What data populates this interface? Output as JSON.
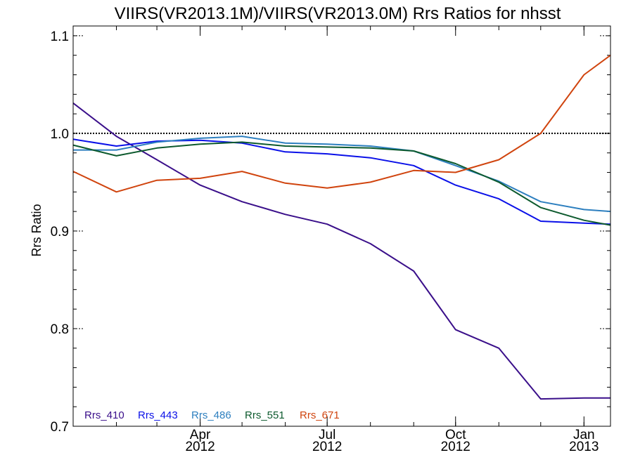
{
  "chart_data": {
    "type": "line",
    "title": "VIIRS(VR2013.1M)/VIIRS(VR2013.0M)  Rrs Ratios for nhsst",
    "xlabel": "",
    "ylabel": "Rrs Ratio",
    "xlim": [
      "2012-01-01",
      "2013-01-20"
    ],
    "ylim": [
      0.7,
      1.11
    ],
    "yticks": [
      {
        "value": 0.7,
        "label": "0.7"
      },
      {
        "value": 0.8,
        "label": "0.8"
      },
      {
        "value": 0.9,
        "label": "0.9"
      },
      {
        "value": 1.0,
        "label": "1.0"
      },
      {
        "value": 1.1,
        "label": "1.1"
      }
    ],
    "xticks": [
      {
        "date": "2012-04-01",
        "month": "Apr",
        "year": "2012"
      },
      {
        "date": "2012-07-01",
        "month": "Jul",
        "year": "2012"
      },
      {
        "date": "2012-10-01",
        "month": "Oct",
        "year": "2012"
      },
      {
        "date": "2013-01-01",
        "month": "Jan",
        "year": "2013"
      }
    ],
    "reference_line": 1.0,
    "x": [
      "2012-01-01",
      "2012-02-01",
      "2012-03-01",
      "2012-04-01",
      "2012-05-01",
      "2012-06-01",
      "2012-07-01",
      "2012-08-01",
      "2012-09-01",
      "2012-10-01",
      "2012-11-01",
      "2012-12-01",
      "2013-01-01",
      "2013-01-20"
    ],
    "series": [
      {
        "name": "Rrs_410",
        "color": "#3a0f8a",
        "values": [
          1.031,
          0.997,
          0.973,
          0.947,
          0.93,
          0.917,
          0.907,
          0.887,
          0.859,
          0.799,
          0.78,
          0.728,
          0.729,
          0.729
        ]
      },
      {
        "name": "Rrs_443",
        "color": "#0a10e8",
        "values": [
          0.994,
          0.987,
          0.992,
          0.993,
          0.99,
          0.981,
          0.979,
          0.975,
          0.967,
          0.947,
          0.933,
          0.91,
          0.908,
          0.907
        ]
      },
      {
        "name": "Rrs_486",
        "color": "#2d7fbf",
        "values": [
          0.983,
          0.983,
          0.991,
          0.995,
          0.997,
          0.99,
          0.989,
          0.987,
          0.982,
          0.967,
          0.951,
          0.93,
          0.922,
          0.92
        ]
      },
      {
        "name": "Rrs_551",
        "color": "#0d5a2e",
        "values": [
          0.988,
          0.977,
          0.985,
          0.989,
          0.991,
          0.987,
          0.986,
          0.985,
          0.982,
          0.969,
          0.95,
          0.924,
          0.911,
          0.906
        ]
      },
      {
        "name": "Rrs_671",
        "color": "#d0440e",
        "values": [
          0.961,
          0.94,
          0.952,
          0.954,
          0.961,
          0.949,
          0.944,
          0.95,
          0.962,
          0.96,
          0.973,
          1.0,
          1.06,
          1.08
        ]
      }
    ],
    "legend": "bottom-left"
  }
}
